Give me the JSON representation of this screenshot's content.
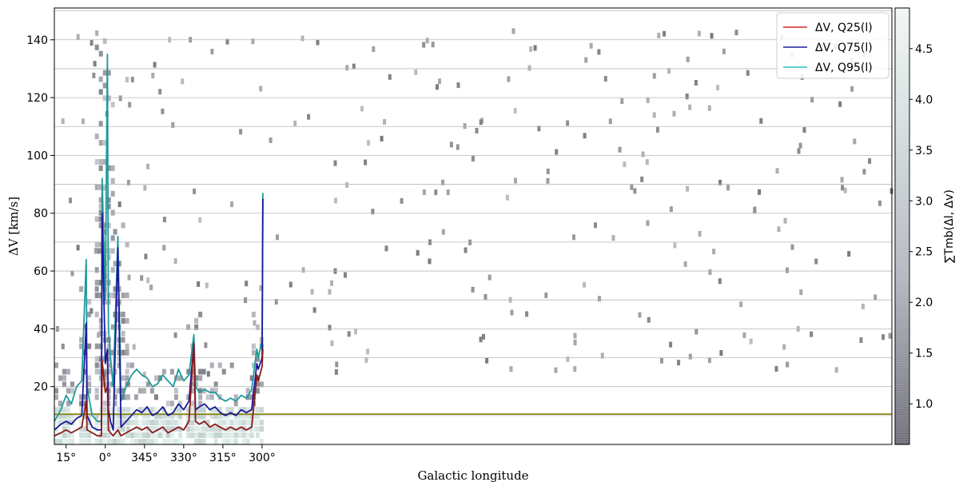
{
  "chart_data": {
    "type": "line",
    "xlabel": "Galactic longitude",
    "ylabel": "ΔV [km/s]",
    "xlim": [
      19.5,
      -301
    ],
    "ylim": [
      0,
      151
    ],
    "x_ticks": [
      {
        "value": 15,
        "label": "15°"
      },
      {
        "value": 0,
        "label": "0°"
      },
      {
        "value": -15,
        "label": "345°"
      },
      {
        "value": -30,
        "label": "330°"
      },
      {
        "value": -45,
        "label": "315°"
      },
      {
        "value": -60,
        "label": "300°"
      }
    ],
    "x_ticks_scale_note": "",
    "y_ticks": [
      20,
      40,
      60,
      80,
      100,
      120,
      140
    ],
    "grid": {
      "horizontal": true,
      "vertical": false
    },
    "threshold_line": {
      "y": 10.5,
      "color": "#808000"
    },
    "legend": {
      "position": "top-right",
      "entries": [
        {
          "label": "ΔV, Q25(l)",
          "color": "#d62728"
        },
        {
          "label": "ΔV, Q75(l)",
          "color": "#1f1f9f"
        },
        {
          "label": "ΔV, Q95(l)",
          "color": "#20c4c4"
        }
      ]
    },
    "colorbar": {
      "label": "∑Tmb(Δl, Δv)",
      "ticks": [
        1.0,
        1.5,
        2.0,
        2.5,
        3.0,
        3.5,
        4.0,
        4.5
      ],
      "range": [
        0.6,
        4.9
      ]
    },
    "series": [
      {
        "name": "ΔV, Q25(l)",
        "color": "#8b1a1a",
        "x": [
          19.5,
          17,
          15,
          13,
          11,
          9,
          7.3,
          7,
          5,
          3,
          1.5,
          1.2,
          0,
          -0.8,
          -1.2,
          -2,
          -3,
          -4.8,
          -6,
          -8,
          -10,
          -12,
          -14,
          -16,
          -18,
          -20,
          -22,
          -24,
          -26,
          -28,
          -30,
          -32,
          -33.9,
          -34.5,
          -36,
          -38,
          -40,
          -42,
          -44,
          -46,
          -48,
          -50,
          -52,
          -54,
          -56,
          -58,
          -58.5,
          -60,
          -60.3
        ],
        "values": [
          3,
          4,
          5,
          4,
          5,
          6,
          15,
          5,
          4,
          3,
          3,
          29,
          18,
          20,
          5,
          4,
          3,
          5,
          3,
          4,
          5,
          6,
          5,
          6,
          4,
          5,
          6,
          4,
          5,
          6,
          5,
          8,
          35,
          8,
          7,
          8,
          6,
          7,
          6,
          5,
          6,
          5,
          6,
          5,
          6,
          24,
          22,
          27,
          33
        ]
      },
      {
        "name": "ΔV, Q75(l)",
        "color": "#1a1a9a",
        "x": [
          19.5,
          17,
          15,
          13,
          11,
          9,
          7.3,
          7,
          5,
          3,
          1.5,
          1.2,
          0,
          -0.8,
          -1.2,
          -2,
          -3,
          -4.8,
          -6,
          -8,
          -10,
          -12,
          -14,
          -16,
          -18,
          -20,
          -22,
          -24,
          -26,
          -28,
          -30,
          -32,
          -33.9,
          -34.5,
          -36,
          -38,
          -40,
          -42,
          -44,
          -46,
          -48,
          -50,
          -52,
          -54,
          -56,
          -58,
          -58.5,
          -60,
          -60.3
        ],
        "values": [
          5,
          7,
          8,
          7,
          9,
          10,
          42,
          10,
          6,
          5,
          5,
          80,
          28,
          33,
          12,
          8,
          5,
          68,
          6,
          8,
          10,
          12,
          11,
          13,
          10,
          11,
          13,
          10,
          11,
          14,
          12,
          15,
          35,
          12,
          13,
          14,
          12,
          13,
          11,
          10,
          11,
          10,
          12,
          11,
          12,
          28,
          26,
          30,
          85
        ]
      },
      {
        "name": "ΔV, Q95(l)",
        "color": "#1f9a9a",
        "x": [
          19.5,
          17,
          15,
          13,
          11,
          9,
          7.3,
          7,
          5,
          3,
          1.5,
          1.2,
          0,
          -0.8,
          -1.2,
          -2,
          -3,
          -4.8,
          -6,
          -8,
          -10,
          -12,
          -14,
          -16,
          -18,
          -20,
          -22,
          -24,
          -26,
          -28,
          -30,
          -32,
          -33.9,
          -34.5,
          -36,
          -38,
          -40,
          -42,
          -44,
          -46,
          -48,
          -50,
          -52,
          -54,
          -56,
          -58,
          -58.5,
          -60,
          -60.3
        ],
        "values": [
          8,
          12,
          17,
          14,
          20,
          22,
          64,
          20,
          10,
          8,
          8,
          92,
          50,
          135,
          40,
          30,
          20,
          72,
          15,
          20,
          24,
          26,
          24,
          23,
          20,
          21,
          24,
          22,
          20,
          26,
          22,
          24,
          38,
          20,
          18,
          19,
          18,
          18,
          16,
          15,
          16,
          15,
          17,
          16,
          19,
          33,
          30,
          36,
          87
        ]
      }
    ],
    "heatmap_regions": [
      {
        "x_from": 19.5,
        "x_to": 12,
        "y_from": 0,
        "y_to": 30
      },
      {
        "x_from": 10,
        "x_to": 6,
        "y_from": 0,
        "y_to": 60
      },
      {
        "x_from": 4,
        "x_to": -3,
        "y_from": 0,
        "y_to": 140
      },
      {
        "x_from": -3,
        "x_to": -8,
        "y_from": 0,
        "y_to": 75
      },
      {
        "x_from": -8,
        "x_to": -28,
        "y_from": 0,
        "y_to": 28
      },
      {
        "x_from": -31,
        "x_to": -37,
        "y_from": 0,
        "y_to": 45
      },
      {
        "x_from": -37,
        "x_to": -56,
        "y_from": 0,
        "y_to": 28
      },
      {
        "x_from": -56,
        "x_to": -60.5,
        "y_from": 0,
        "y_to": 45
      }
    ]
  }
}
